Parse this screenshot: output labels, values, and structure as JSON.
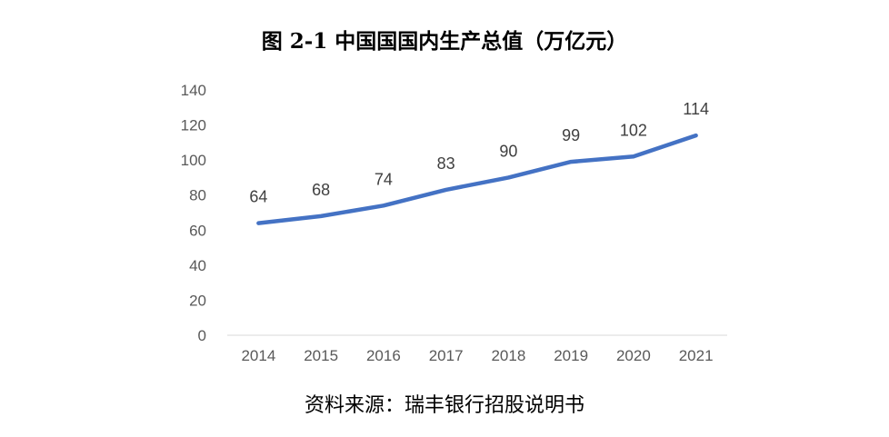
{
  "title": "图 2-1 中国国国内生产总值（万亿元）",
  "source": "资料来源：瑞丰银行招股说明书",
  "colors": {
    "line": "#4472C4",
    "axis": "#D9D9D9",
    "tick_text": "#595959",
    "label_text": "#404040"
  },
  "chart_data": {
    "type": "line",
    "categories": [
      "2014",
      "2015",
      "2016",
      "2017",
      "2018",
      "2019",
      "2020",
      "2021"
    ],
    "values": [
      64,
      68,
      74,
      83,
      90,
      99,
      102,
      114
    ],
    "data_labels": [
      "64",
      "68",
      "74",
      "83",
      "90",
      "99",
      "102",
      "114"
    ],
    "y_ticks": [
      "0",
      "20",
      "40",
      "60",
      "80",
      "100",
      "120",
      "140"
    ],
    "ylim": [
      0,
      140
    ],
    "grid": false,
    "legend": "none"
  }
}
